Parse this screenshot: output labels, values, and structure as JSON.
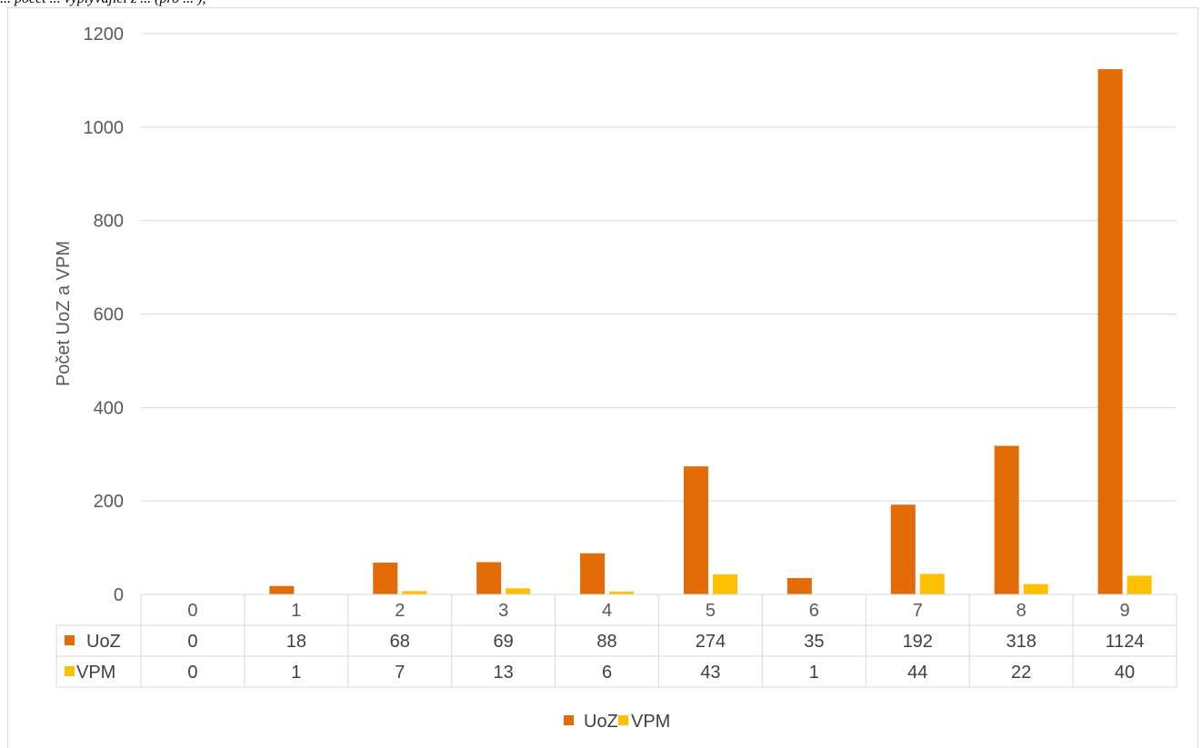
{
  "caption": "... počet ... vyplývající z ... (pro ... ),",
  "chart_data": {
    "type": "bar",
    "categories": [
      "0",
      "1",
      "2",
      "3",
      "4",
      "5",
      "6",
      "7",
      "8",
      "9"
    ],
    "series": [
      {
        "name": "UoZ",
        "values": [
          0,
          18,
          68,
          69,
          88,
          274,
          35,
          192,
          318,
          1124
        ],
        "color": "#e36c09"
      },
      {
        "name": "VPM",
        "values": [
          0,
          1,
          7,
          13,
          6,
          43,
          1,
          44,
          22,
          40
        ],
        "color": "#ffc000"
      }
    ],
    "title": "",
    "xlabel": "",
    "ylabel": "Počet UoZ a VPM",
    "ylim": [
      0,
      1200
    ],
    "yticks": [
      0,
      200,
      400,
      600,
      800,
      1000,
      1200
    ],
    "grid": true,
    "data_table": true,
    "legend": "bottom"
  }
}
